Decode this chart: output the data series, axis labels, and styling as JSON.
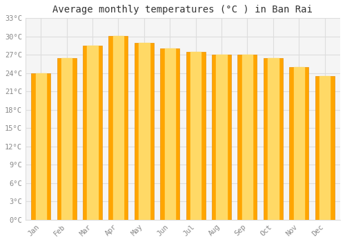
{
  "title": "Average monthly temperatures (°C ) in Ban Rai",
  "months": [
    "Jan",
    "Feb",
    "Mar",
    "Apr",
    "May",
    "Jun",
    "Jul",
    "Aug",
    "Sep",
    "Oct",
    "Nov",
    "Dec"
  ],
  "temperatures": [
    24.0,
    26.5,
    28.5,
    30.1,
    29.0,
    28.0,
    27.5,
    27.0,
    27.0,
    26.5,
    25.0,
    23.5
  ],
  "bar_color_center": "#FFD966",
  "bar_color_edge": "#FFA500",
  "bar_color_side": "#E8920A",
  "ylim": [
    0,
    33
  ],
  "yticks": [
    0,
    3,
    6,
    9,
    12,
    15,
    18,
    21,
    24,
    27,
    30,
    33
  ],
  "ytick_labels": [
    "0°C",
    "3°C",
    "6°C",
    "9°C",
    "12°C",
    "15°C",
    "18°C",
    "21°C",
    "24°C",
    "27°C",
    "30°C",
    "33°C"
  ],
  "background_color": "#ffffff",
  "plot_bg_color": "#f5f5f5",
  "grid_color": "#dddddd",
  "title_fontsize": 10,
  "tick_fontsize": 7.5,
  "font_family": "monospace",
  "tick_color": "#888888",
  "bar_width": 0.75
}
